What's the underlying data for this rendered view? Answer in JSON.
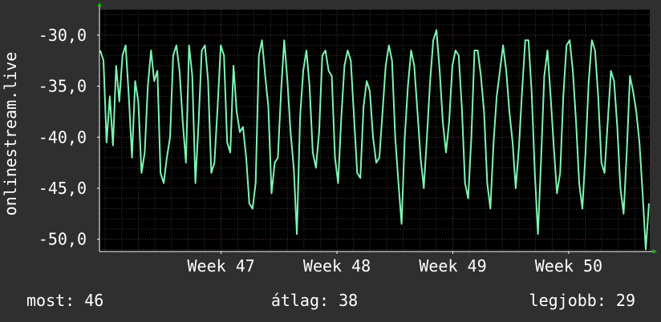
{
  "colors": {
    "background": "#2f2f2f",
    "plot_background": "#000000",
    "series_line": "#7ef5b2",
    "grid_minor": "#3a3a3a",
    "grid_major": "#5a3838",
    "axis": "#ffffff",
    "arrow": "#00c000",
    "text": "#ffffff"
  },
  "chart_data": {
    "type": "line",
    "title": "",
    "xlabel": "",
    "ylabel": "onlinestream.live",
    "ylim": [
      -51.2,
      -27.5
    ],
    "yticks": [
      -30,
      -35,
      -40,
      -45,
      -50
    ],
    "ytick_labels": [
      "-30,0",
      "-35,0",
      "-40,0",
      "-45,0",
      "-50,0"
    ],
    "xlim": [
      45.95,
      50.7
    ],
    "xticks": [
      47,
      48,
      49,
      50
    ],
    "xtick_labels": [
      "Week 47",
      "Week 48",
      "Week 49",
      "Week 50"
    ],
    "grid": true,
    "series": [
      {
        "values": [
          -31.5,
          -32.5,
          -40.5,
          -36,
          -40.8,
          -33,
          -36.5,
          -32,
          -31,
          -36,
          -42,
          -34.5,
          -36.5,
          -43.5,
          -41.5,
          -35,
          -31.5,
          -34.5,
          -33.5,
          -43.5,
          -44.5,
          -42,
          -40,
          -32,
          -31,
          -33.5,
          -38.5,
          -42.5,
          -31,
          -34,
          -44.5,
          -38.5,
          -31.5,
          -31,
          -34.5,
          -43.5,
          -42.5,
          -37,
          -31,
          -32,
          -40.5,
          -41.5,
          -33,
          -37.5,
          -39.5,
          -39,
          -42,
          -46.5,
          -47,
          -44.5,
          -32,
          -30.5,
          -34,
          -37,
          -45.5,
          -42.5,
          -42,
          -35.5,
          -30.5,
          -34.5,
          -39.5,
          -43,
          -49.5,
          -38,
          -33.5,
          -31.5,
          -35,
          -41.5,
          -43,
          -39.5,
          -32,
          -31.5,
          -33.5,
          -34,
          -42,
          -44.5,
          -38,
          -33,
          -31.5,
          -32.5,
          -38,
          -43.5,
          -44,
          -37,
          -34.5,
          -35.5,
          -40,
          -42.5,
          -42,
          -37.5,
          -33,
          -31,
          -32.5,
          -40,
          -44.5,
          -48.5,
          -40,
          -35,
          -31.5,
          -33,
          -37.5,
          -42,
          -45,
          -40,
          -34.5,
          -30.5,
          -29.5,
          -33.5,
          -38.5,
          -41.5,
          -38.5,
          -33,
          -31.5,
          -32,
          -37,
          -44.5,
          -46,
          -40,
          -31.5,
          -31.5,
          -34,
          -37.5,
          -44.5,
          -47,
          -40.5,
          -36,
          -33.5,
          -31,
          -33.5,
          -37.5,
          -40.5,
          -45,
          -41,
          -35.5,
          -30.5,
          -30.5,
          -35.5,
          -43.5,
          -49.5,
          -42,
          -34,
          -31.5,
          -36,
          -41,
          -45.5,
          -43.5,
          -36,
          -31,
          -30.5,
          -33.5,
          -38.5,
          -44.5,
          -47,
          -41.5,
          -34.5,
          -30.5,
          -31.5,
          -36,
          -42.5,
          -43.5,
          -38.5,
          -33.5,
          -34.5,
          -39,
          -45,
          -47.5,
          -41.5,
          -34,
          -35.5,
          -37.5,
          -40.5,
          -45.5,
          -51,
          -46.5
        ]
      }
    ]
  },
  "stats": {
    "now": "most: 46",
    "average": "átlag: 38",
    "best": "legjobb: 29"
  }
}
